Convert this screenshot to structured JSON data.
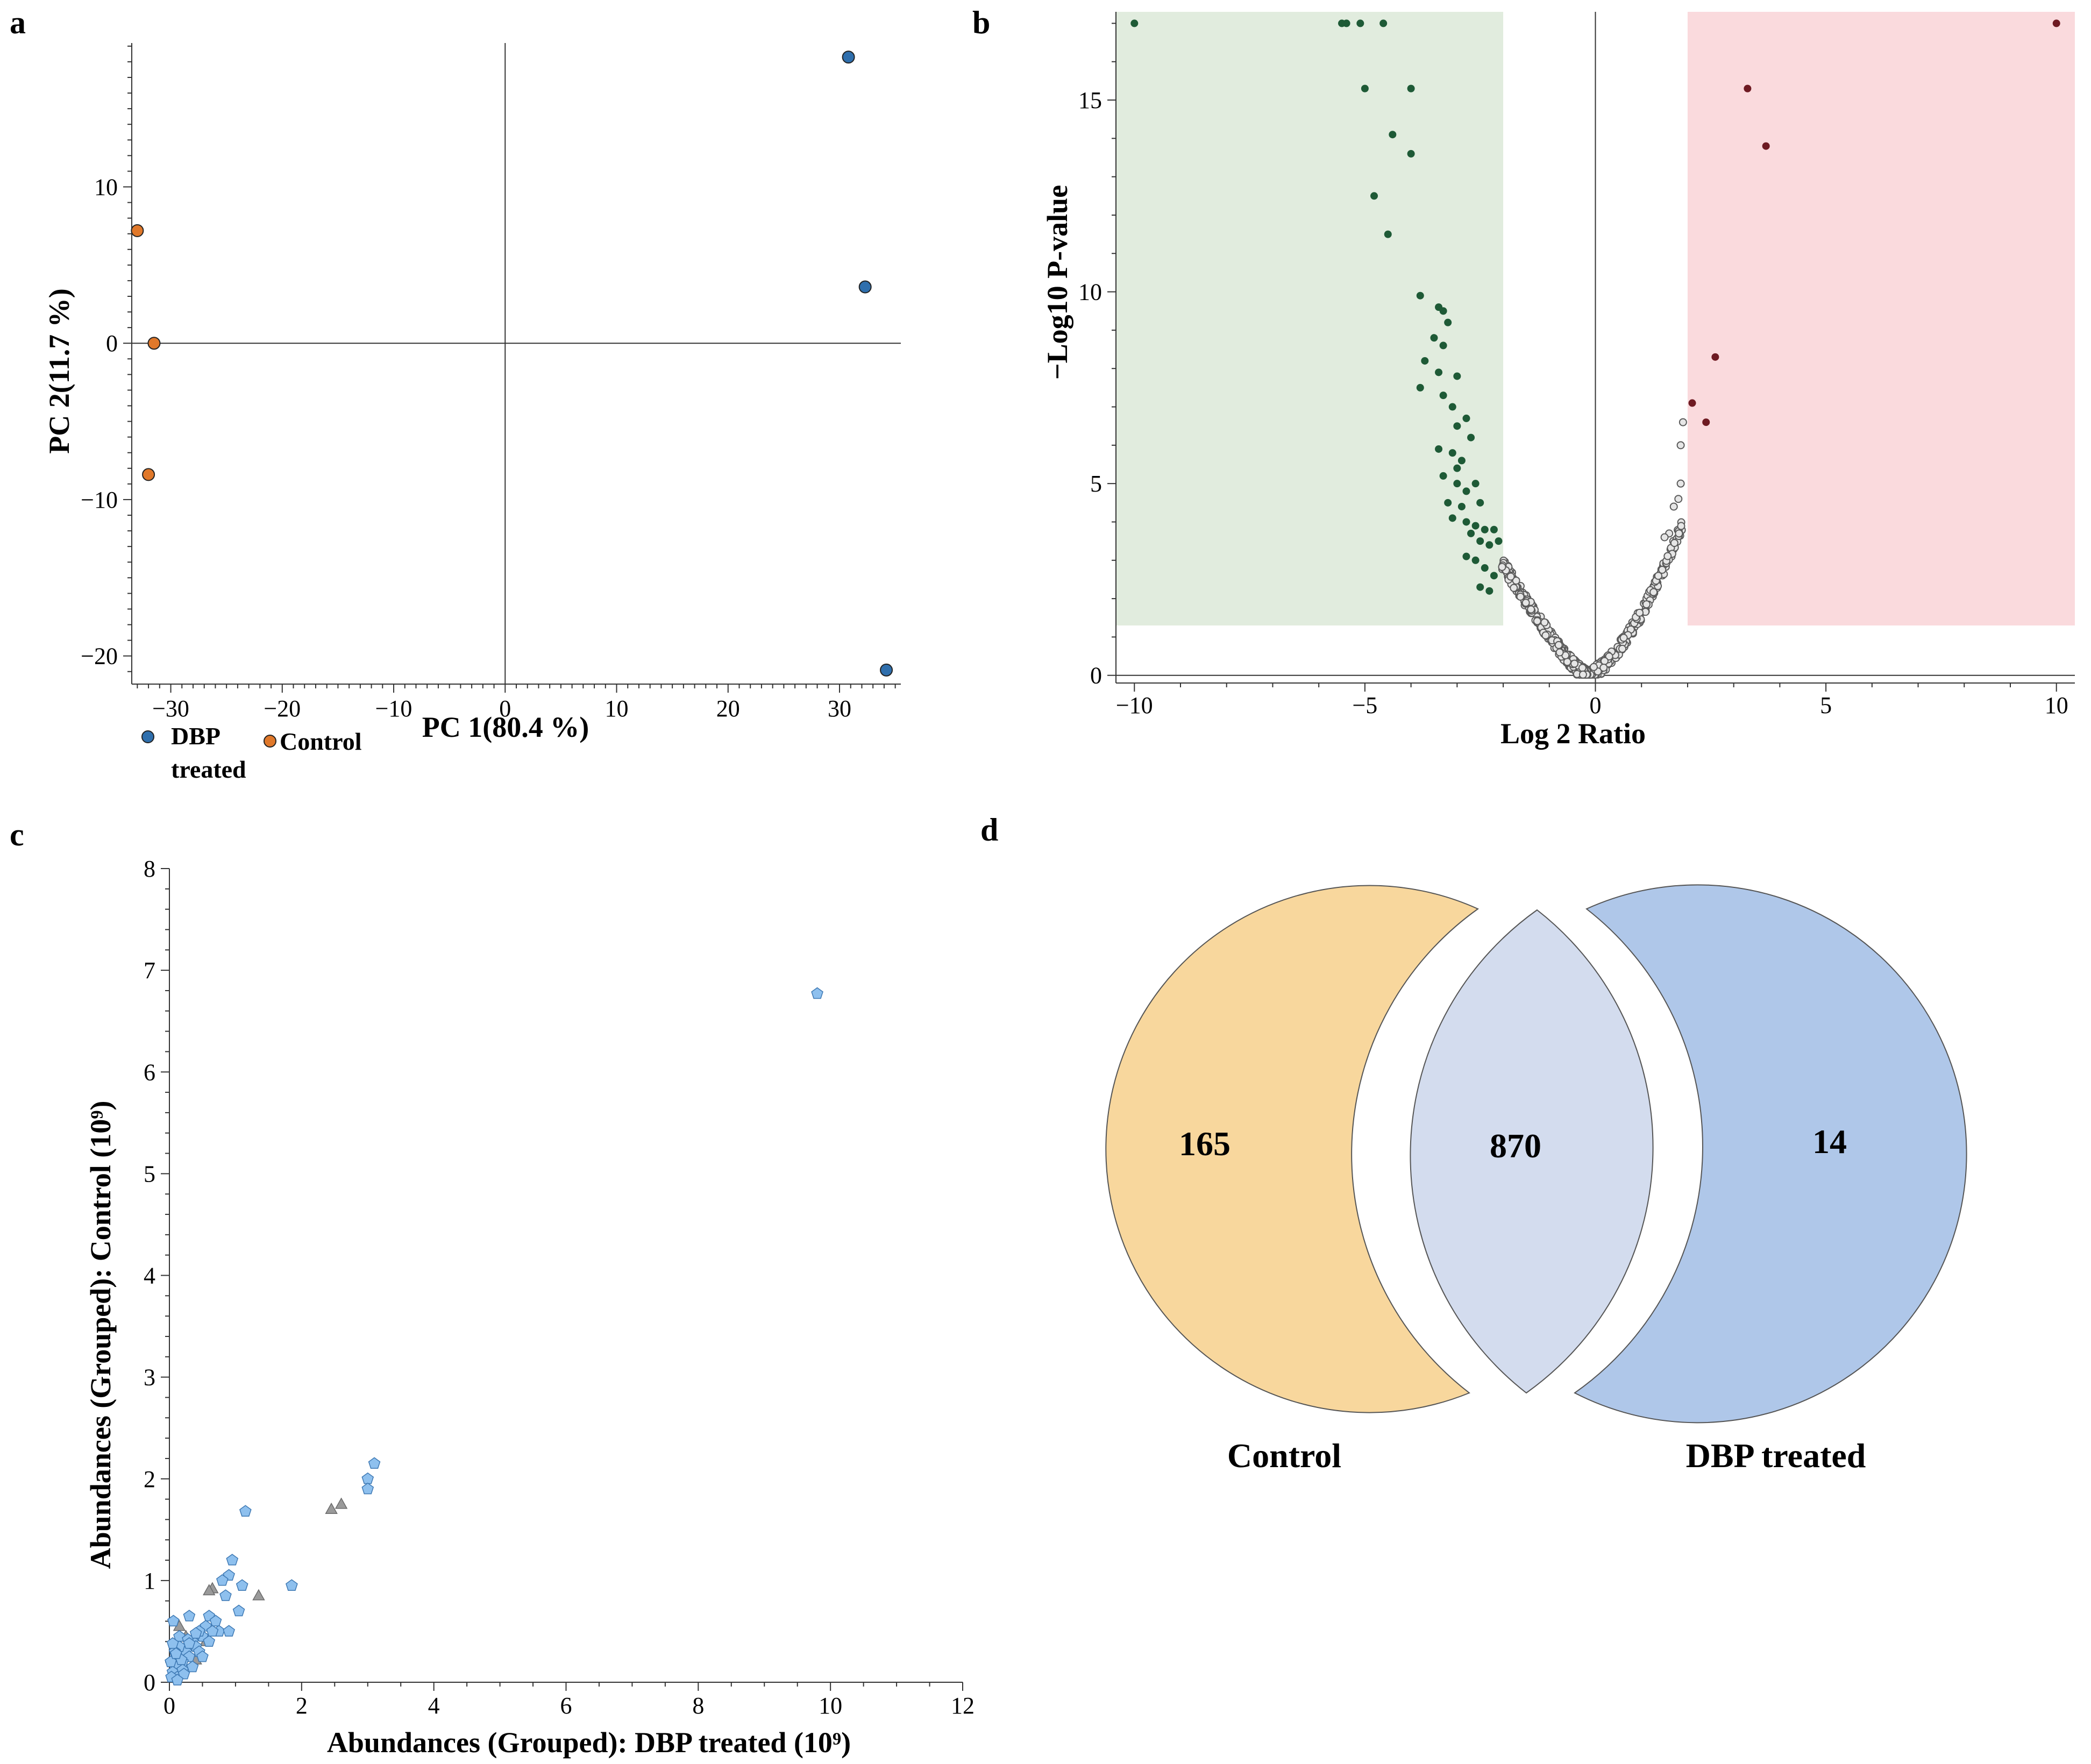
{
  "colors": {
    "dbp_blue": "#2f6fad",
    "control_orange": "#e0782a",
    "down_green": "#1e5a36",
    "down_region": "#e1ecde",
    "up_red": "#6e1a22",
    "up_region": "#fadadd",
    "ns_gray": "#8a8a8a",
    "scatter_blue": "#8ec0ee",
    "scatter_gray": "#9a9a9a",
    "venn_control": "#f8d79d",
    "venn_overlap": "#d3dcee",
    "venn_dbp": "#afc7e9"
  },
  "chart_data": [
    {
      "id": "a",
      "panel_label": "a",
      "type": "scatter",
      "title": "",
      "xlabel": "PC 1(80.4 %)",
      "ylabel": "PC 2(11.7 %)",
      "xlim": [
        -33.5,
        35.5
      ],
      "ylim": [
        -21.8,
        19.2
      ],
      "xticks": [
        -30,
        -20,
        -10,
        0,
        10,
        20,
        30
      ],
      "yticks": [
        -20,
        -10,
        0,
        10
      ],
      "xtick_labels": [
        "−30",
        "−20",
        "−10",
        "0",
        "10",
        "20",
        "30"
      ],
      "ytick_labels": [
        "−20",
        "−10",
        "0",
        "10"
      ],
      "grid": false,
      "zero_lines": true,
      "legend_position": "bottom-left",
      "series": [
        {
          "name": "DBP treated",
          "legend_lines": [
            "DBP",
            "treated"
          ],
          "color": "#2f6fad",
          "points": [
            [
              30.8,
              18.3
            ],
            [
              32.3,
              3.6
            ],
            [
              34.2,
              -20.9
            ]
          ]
        },
        {
          "name": "Control",
          "legend_lines": [
            "Control"
          ],
          "color": "#e0782a",
          "points": [
            [
              -33.0,
              7.2
            ],
            [
              -31.5,
              0.0
            ],
            [
              -32.0,
              -8.4
            ]
          ]
        }
      ]
    },
    {
      "id": "b",
      "panel_label": "b",
      "type": "scatter",
      "title": "",
      "xlabel": "Log 2 Ratio",
      "ylabel": "−Log10 P-value",
      "xlim": [
        -10.4,
        10.4
      ],
      "ylim": [
        -0.2,
        17.3
      ],
      "xticks": [
        -10,
        -5,
        0,
        5,
        10
      ],
      "yticks": [
        0,
        5,
        10,
        15
      ],
      "xtick_labels": [
        "−10",
        "−5",
        "0",
        "5",
        "10"
      ],
      "ytick_labels": [
        "0",
        "5",
        "10",
        "15"
      ],
      "grid": false,
      "zero_lines": true,
      "highlight_regions": [
        {
          "name": "down",
          "x": [
            -10.4,
            -2.0
          ],
          "y": [
            1.3,
            17.3
          ],
          "color": "#e1ecde"
        },
        {
          "name": "up",
          "x": [
            2.0,
            10.4
          ],
          "y": [
            1.3,
            17.3
          ],
          "color": "#fadadd"
        }
      ],
      "series": [
        {
          "name": "down-regulated",
          "color": "#1e5a36",
          "points": [
            [
              -10.0,
              17.0
            ],
            [
              -5.5,
              17.0
            ],
            [
              -5.4,
              17.0
            ],
            [
              -5.1,
              17.0
            ],
            [
              -4.6,
              17.0
            ],
            [
              -5.0,
              15.3
            ],
            [
              -4.0,
              15.3
            ],
            [
              -4.4,
              14.1
            ],
            [
              -4.0,
              13.6
            ],
            [
              -4.8,
              12.5
            ],
            [
              -4.5,
              11.5
            ],
            [
              -3.8,
              9.9
            ],
            [
              -3.4,
              9.6
            ],
            [
              -3.3,
              9.5
            ],
            [
              -3.2,
              9.2
            ],
            [
              -3.5,
              8.8
            ],
            [
              -3.3,
              8.6
            ],
            [
              -3.7,
              8.2
            ],
            [
              -3.4,
              7.9
            ],
            [
              -3.0,
              7.8
            ],
            [
              -3.8,
              7.5
            ],
            [
              -3.3,
              7.3
            ],
            [
              -3.1,
              7.0
            ],
            [
              -2.8,
              6.7
            ],
            [
              -3.0,
              6.5
            ],
            [
              -2.7,
              6.2
            ],
            [
              -3.4,
              5.9
            ],
            [
              -3.1,
              5.8
            ],
            [
              -2.9,
              5.6
            ],
            [
              -3.0,
              5.4
            ],
            [
              -2.6,
              5.0
            ],
            [
              -3.3,
              5.2
            ],
            [
              -3.0,
              5.0
            ],
            [
              -2.8,
              4.8
            ],
            [
              -2.5,
              4.5
            ],
            [
              -3.2,
              4.5
            ],
            [
              -2.9,
              4.4
            ],
            [
              -3.1,
              4.1
            ],
            [
              -2.8,
              4.0
            ],
            [
              -2.6,
              3.9
            ],
            [
              -2.4,
              3.8
            ],
            [
              -2.7,
              3.7
            ],
            [
              -2.2,
              3.8
            ],
            [
              -2.5,
              3.5
            ],
            [
              -2.3,
              3.4
            ],
            [
              -2.1,
              3.5
            ],
            [
              -2.8,
              3.1
            ],
            [
              -2.6,
              3.0
            ],
            [
              -2.4,
              2.8
            ],
            [
              -2.2,
              2.6
            ],
            [
              -2.5,
              2.3
            ],
            [
              -2.3,
              2.2
            ]
          ]
        },
        {
          "name": "up-regulated",
          "color": "#6e1a22",
          "points": [
            [
              10.0,
              17.0
            ],
            [
              3.3,
              15.3
            ],
            [
              3.7,
              13.8
            ],
            [
              2.6,
              8.3
            ],
            [
              2.1,
              7.1
            ],
            [
              2.4,
              6.6
            ]
          ]
        },
        {
          "name": "not significant",
          "color": "#8a8a8a",
          "points": []
        }
      ]
    },
    {
      "id": "c",
      "panel_label": "c",
      "type": "scatter",
      "title": "",
      "xlabel": "Abundances (Grouped): DBP treated (10⁹)",
      "ylabel": "Abundances (Grouped): Control (10⁹)",
      "xlim": [
        0,
        12
      ],
      "ylim": [
        0,
        8
      ],
      "xticks": [
        0,
        2,
        4,
        6,
        8,
        10,
        12
      ],
      "yticks": [
        0,
        1,
        2,
        3,
        4,
        5,
        6,
        7,
        8
      ],
      "xtick_labels": [
        "0",
        "2",
        "4",
        "6",
        "8",
        "10",
        "12"
      ],
      "ytick_labels": [
        "0",
        "1",
        "2",
        "3",
        "4",
        "5",
        "6",
        "7",
        "8"
      ],
      "grid": false,
      "series": [
        {
          "name": "blue pentagons",
          "color": "#8ec0ee",
          "points": [
            [
              9.8,
              6.77
            ],
            [
              3.1,
              2.15
            ],
            [
              3.0,
              2.0
            ],
            [
              3.0,
              1.9
            ],
            [
              1.15,
              1.68
            ],
            [
              1.85,
              0.95
            ],
            [
              0.95,
              1.2
            ],
            [
              0.9,
              1.05
            ],
            [
              0.8,
              1.0
            ],
            [
              0.85,
              0.85
            ],
            [
              1.05,
              0.7
            ],
            [
              1.1,
              0.95
            ],
            [
              0.6,
              0.65
            ],
            [
              0.55,
              0.55
            ],
            [
              0.7,
              0.6
            ],
            [
              0.75,
              0.5
            ],
            [
              0.9,
              0.5
            ],
            [
              0.5,
              0.45
            ],
            [
              0.45,
              0.5
            ],
            [
              0.3,
              0.65
            ],
            [
              0.35,
              0.4
            ],
            [
              0.4,
              0.35
            ],
            [
              0.25,
              0.3
            ],
            [
              0.3,
              0.25
            ],
            [
              0.2,
              0.2
            ],
            [
              0.15,
              0.35
            ],
            [
              0.1,
              0.15
            ],
            [
              0.05,
              0.1
            ],
            [
              0.08,
              0.3
            ],
            [
              0.12,
              0.05
            ],
            [
              0.2,
              0.12
            ],
            [
              0.03,
              0.05
            ],
            [
              0.06,
              0.6
            ],
            [
              0.15,
              0.45
            ],
            [
              0.28,
              0.42
            ],
            [
              0.4,
              0.48
            ],
            [
              0.18,
              0.22
            ],
            [
              0.02,
              0.2
            ],
            [
              0.05,
              0.38
            ],
            [
              0.35,
              0.15
            ],
            [
              0.45,
              0.3
            ],
            [
              0.6,
              0.4
            ],
            [
              0.1,
              0.28
            ],
            [
              0.22,
              0.08
            ],
            [
              0.3,
              0.38
            ],
            [
              0.5,
              0.25
            ],
            [
              0.65,
              0.5
            ],
            [
              0.12,
              0.02
            ]
          ]
        },
        {
          "name": "gray triangles",
          "color": "#9a9a9a",
          "points": [
            [
              2.45,
              1.7
            ],
            [
              2.6,
              1.75
            ],
            [
              1.35,
              0.85
            ],
            [
              0.65,
              0.92
            ],
            [
              0.6,
              0.9
            ],
            [
              0.25,
              0.45
            ],
            [
              0.55,
              0.4
            ],
            [
              0.15,
              0.55
            ],
            [
              0.2,
              0.32
            ],
            [
              0.4,
              0.22
            ]
          ]
        }
      ]
    },
    {
      "id": "d",
      "panel_label": "d",
      "type": "venn",
      "title": "",
      "sets": [
        {
          "name": "Control",
          "only_count": 165,
          "color": "#f8d79d"
        },
        {
          "name": "DBP treated",
          "only_count": 14,
          "color": "#afc7e9"
        }
      ],
      "overlap": {
        "count": 870,
        "color": "#d3dcee"
      }
    }
  ]
}
